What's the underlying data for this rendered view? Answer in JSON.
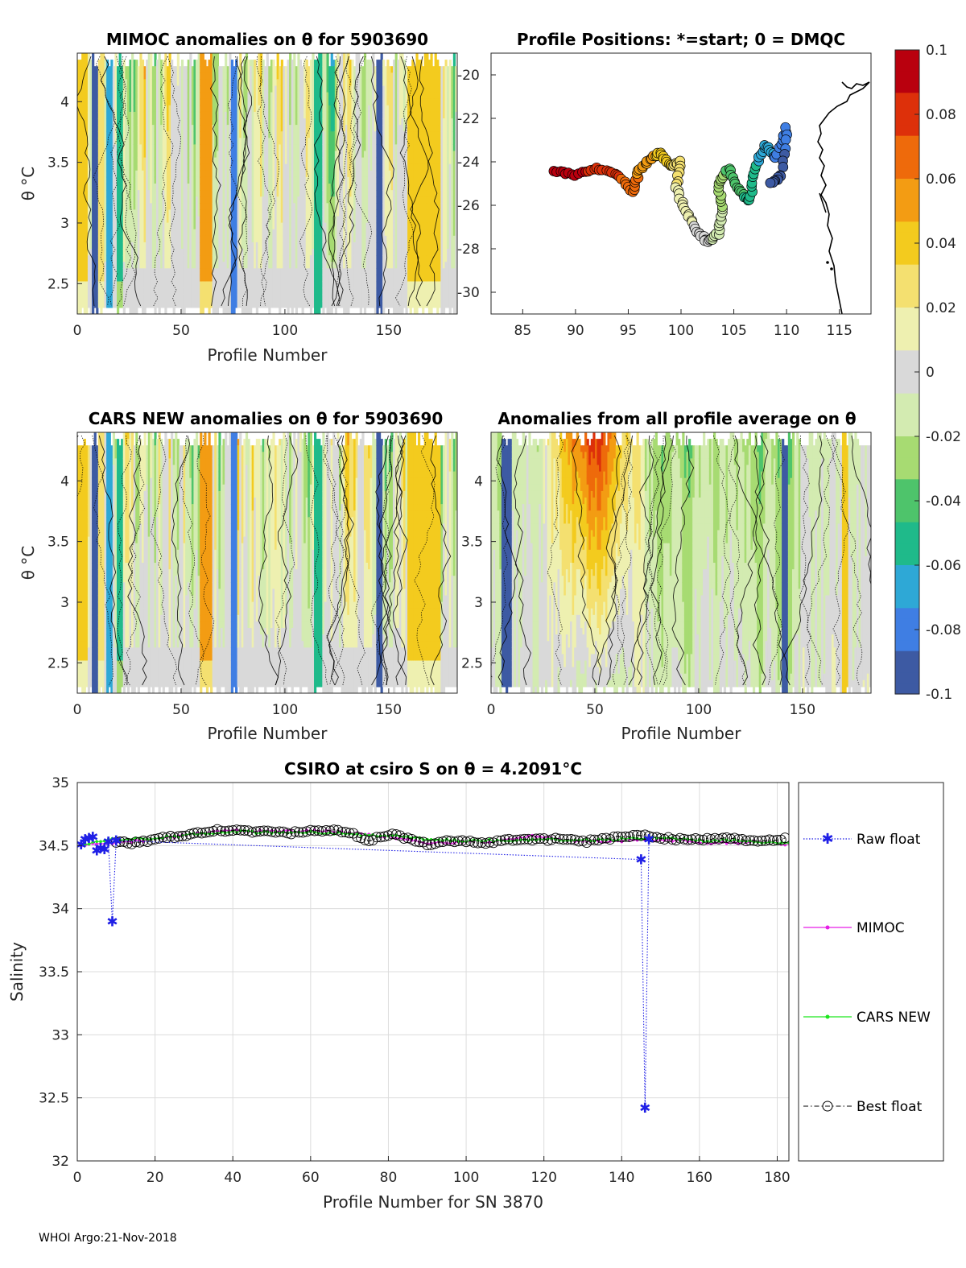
{
  "figure": {
    "footer": "WHOI Argo:21-Nov-2018"
  },
  "colors": {
    "raw_float": "#1f1fe6",
    "mimoc": "#e61ee6",
    "cars_new": "#1ee61e",
    "best_float": "#000000",
    "colormap": [
      "#3d5aa3",
      "#3f7ee3",
      "#2ea8d6",
      "#1fba8a",
      "#4ec46b",
      "#a7db72",
      "#d3ebb1",
      "#d9d9d9",
      "#eef0b0",
      "#f4e070",
      "#f3cb1e",
      "#f39c13",
      "#ee6a0b",
      "#dd300a",
      "#b9000e"
    ]
  },
  "panels": {
    "mimoc": {
      "title": "MIMOC anomalies on θ  for 5903690",
      "xlabel": "Profile Number",
      "ylabel": "θ °C",
      "xticks": [
        "0",
        "50",
        "100",
        "150"
      ],
      "yticks": [
        "4",
        "3.5",
        "3",
        "2.5"
      ]
    },
    "positions": {
      "title": "Profile Positions: *=start; 0 = DMQC",
      "xticks": [
        "85",
        "90",
        "95",
        "100",
        "105",
        "110",
        "115"
      ],
      "yticks": [
        "-20",
        "-22",
        "-24",
        "-26",
        "-28",
        "-30"
      ]
    },
    "cars": {
      "title": "CARS NEW anomalies on θ for 5903690",
      "xlabel": "Profile Number",
      "ylabel": "θ °C",
      "xticks": [
        "0",
        "50",
        "100",
        "150"
      ],
      "yticks": [
        "4",
        "3.5",
        "3",
        "2.5"
      ]
    },
    "allavg": {
      "title": "Anomalies from all profile average on θ",
      "xlabel": "Profile Number",
      "xticks": [
        "0",
        "50",
        "100",
        "150"
      ],
      "yticks": [
        "4",
        "3.5",
        "3",
        "2.5"
      ]
    },
    "colorbar": {
      "ticks": [
        "0.1",
        "0.08",
        "0.06",
        "0.04",
        "0.02",
        "0",
        "-0.02",
        "-0.04",
        "-0.06",
        "-0.08",
        "-0.1"
      ]
    },
    "salinity": {
      "title": "CSIRO at csiro S on θ = 4.2091°C",
      "xlabel": "Profile Number for SN 3870",
      "ylabel": "Salinity",
      "xticks": [
        "0",
        "20",
        "40",
        "60",
        "80",
        "100",
        "120",
        "140",
        "160",
        "180"
      ],
      "yticks": [
        "35",
        "34.5",
        "34",
        "33.5",
        "33",
        "32.5",
        "32"
      ]
    }
  },
  "legend": {
    "raw": "Raw float",
    "mimoc": "MIMOC",
    "cars": "CARS NEW",
    "best": "Best float"
  },
  "chart_data": [
    {
      "type": "heatmap",
      "title": "MIMOC anomalies on θ  for 5903690",
      "xlabel": "Profile Number",
      "ylabel": "θ °C",
      "xlim": [
        0,
        183
      ],
      "ylim": [
        2.25,
        4.4
      ],
      "clim": [
        -0.1,
        0.1
      ],
      "column_anomalies": [
        {
          "profiles": [
            1,
            5
          ],
          "value": 0.04
        },
        {
          "profiles": [
            8,
            10
          ],
          "value": -0.1
        },
        {
          "profiles": [
            11,
            13
          ],
          "value": 0.03
        },
        {
          "profiles": [
            15,
            17
          ],
          "value": -0.07
        },
        {
          "profiles": [
            20,
            22
          ],
          "value": -0.05
        },
        {
          "profiles": [
            60,
            65
          ],
          "value": 0.05
        },
        {
          "profiles": [
            75,
            77
          ],
          "value": -0.08
        },
        {
          "profiles": [
            115,
            118
          ],
          "value": -0.06
        },
        {
          "profiles": [
            145,
            147
          ],
          "value": -0.1
        },
        {
          "profiles": [
            160,
            175
          ],
          "value": 0.035
        }
      ]
    },
    {
      "type": "scatter",
      "title": "Profile Positions: *=start; 0 = DMQC",
      "xlim": [
        82,
        118
      ],
      "ylim": [
        -31,
        -19
      ],
      "track": [
        [
          88,
          -24.4
        ],
        [
          90,
          -24.6
        ],
        [
          92,
          -24.3
        ],
        [
          94,
          -24.6
        ],
        [
          95.5,
          -25.4
        ],
        [
          96,
          -24.4
        ],
        [
          97,
          -23.9
        ],
        [
          98,
          -23.6
        ],
        [
          99,
          -24.2
        ],
        [
          100,
          -24.0
        ],
        [
          99.5,
          -25.2
        ],
        [
          100.5,
          -26.3
        ],
        [
          101.5,
          -27.2
        ],
        [
          102.5,
          -27.7
        ],
        [
          103.5,
          -27.3
        ],
        [
          104,
          -26.2
        ],
        [
          103.5,
          -25.0
        ],
        [
          104.5,
          -24.3
        ],
        [
          105.5,
          -25.3
        ],
        [
          106.5,
          -25.8
        ],
        [
          107,
          -24.3
        ],
        [
          108,
          -23.2
        ],
        [
          109,
          -23.8
        ],
        [
          110,
          -22.4
        ],
        [
          109.5,
          -24.6
        ],
        [
          108.5,
          -25.0
        ]
      ]
    },
    {
      "type": "heatmap",
      "title": "CARS NEW anomalies on θ for 5903690",
      "xlabel": "Profile Number",
      "ylabel": "θ °C",
      "xlim": [
        0,
        183
      ],
      "ylim": [
        2.25,
        4.4
      ],
      "clim": [
        -0.1,
        0.1
      ]
    },
    {
      "type": "heatmap",
      "title": "Anomalies from all profile average on θ",
      "xlabel": "Profile Number",
      "xlim": [
        0,
        183
      ],
      "ylim": [
        2.25,
        4.4
      ],
      "clim": [
        -0.1,
        0.1
      ]
    },
    {
      "type": "line",
      "title": "CSIRO at csiro S on θ = 4.2091°C",
      "xlabel": "Profile Number for SN 3870",
      "ylabel": "Salinity",
      "xlim": [
        0,
        183
      ],
      "ylim": [
        32,
        35
      ],
      "grid": true,
      "legend": "right",
      "series": [
        {
          "name": "Raw float",
          "style": "dotted-star",
          "points": [
            [
              1,
              34.51
            ],
            [
              2,
              34.55
            ],
            [
              3,
              34.56
            ],
            [
              4,
              34.57
            ],
            [
              5,
              34.46
            ],
            [
              6,
              34.48
            ],
            [
              7,
              34.47
            ],
            [
              8,
              34.53
            ],
            [
              9,
              33.9
            ],
            [
              10,
              34.54
            ],
            [
              145,
              34.39
            ],
            [
              146,
              32.42
            ],
            [
              147,
              34.55
            ]
          ]
        },
        {
          "name": "MIMOC",
          "style": "solid-dot",
          "points": [
            [
              1,
              34.5
            ],
            [
              10,
              34.52
            ],
            [
              20,
              34.55
            ],
            [
              30,
              34.59
            ],
            [
              40,
              34.62
            ],
            [
              50,
              34.61
            ],
            [
              60,
              34.62
            ],
            [
              70,
              34.6
            ],
            [
              80,
              34.57
            ],
            [
              90,
              34.52
            ],
            [
              100,
              34.53
            ],
            [
              110,
              34.54
            ],
            [
              117,
              34.58
            ],
            [
              125,
              34.54
            ],
            [
              135,
              34.53
            ],
            [
              145,
              34.55
            ],
            [
              155,
              34.54
            ],
            [
              165,
              34.52
            ],
            [
              175,
              34.53
            ],
            [
              183,
              34.51
            ]
          ]
        },
        {
          "name": "CARS NEW",
          "style": "solid-dot",
          "points": [
            [
              1,
              34.51
            ],
            [
              10,
              34.55
            ],
            [
              20,
              34.56
            ],
            [
              30,
              34.59
            ],
            [
              40,
              34.61
            ],
            [
              50,
              34.6
            ],
            [
              60,
              34.61
            ],
            [
              70,
              34.59
            ],
            [
              80,
              34.58
            ],
            [
              90,
              34.55
            ],
            [
              100,
              34.54
            ],
            [
              110,
              34.54
            ],
            [
              120,
              34.55
            ],
            [
              130,
              34.54
            ],
            [
              140,
              34.55
            ],
            [
              150,
              34.56
            ],
            [
              160,
              34.54
            ],
            [
              170,
              34.54
            ],
            [
              183,
              34.52
            ]
          ]
        },
        {
          "name": "Best float",
          "style": "dashdot-circle",
          "points": [
            [
              10,
              34.53
            ],
            [
              15,
              34.52
            ],
            [
              20,
              34.55
            ],
            [
              25,
              34.57
            ],
            [
              30,
              34.59
            ],
            [
              35,
              34.62
            ],
            [
              40,
              34.62
            ],
            [
              45,
              34.61
            ],
            [
              50,
              34.61
            ],
            [
              55,
              34.6
            ],
            [
              60,
              34.62
            ],
            [
              65,
              34.62
            ],
            [
              70,
              34.6
            ],
            [
              75,
              34.54
            ],
            [
              80,
              34.59
            ],
            [
              85,
              34.56
            ],
            [
              90,
              34.51
            ],
            [
              95,
              34.54
            ],
            [
              100,
              34.53
            ],
            [
              105,
              34.52
            ],
            [
              110,
              34.54
            ],
            [
              115,
              34.55
            ],
            [
              120,
              34.55
            ],
            [
              125,
              34.55
            ],
            [
              130,
              34.53
            ],
            [
              135,
              34.55
            ],
            [
              140,
              34.57
            ],
            [
              145,
              34.58
            ],
            [
              150,
              34.56
            ],
            [
              155,
              34.55
            ],
            [
              160,
              34.55
            ],
            [
              165,
              34.56
            ],
            [
              170,
              34.55
            ],
            [
              175,
              34.53
            ],
            [
              180,
              34.55
            ],
            [
              182,
              34.56
            ]
          ]
        }
      ]
    }
  ]
}
